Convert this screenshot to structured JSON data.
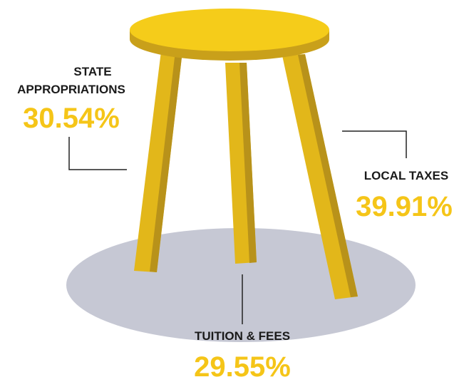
{
  "labels": [
    {
      "name": "STATE",
      "name2": "APPROPRIATIONS",
      "value": "30.54%"
    },
    {
      "name": "LOCAL TAXES",
      "value": "39.91%"
    },
    {
      "name": "TUITION & FEES",
      "value": "29.55%"
    }
  ]
}
